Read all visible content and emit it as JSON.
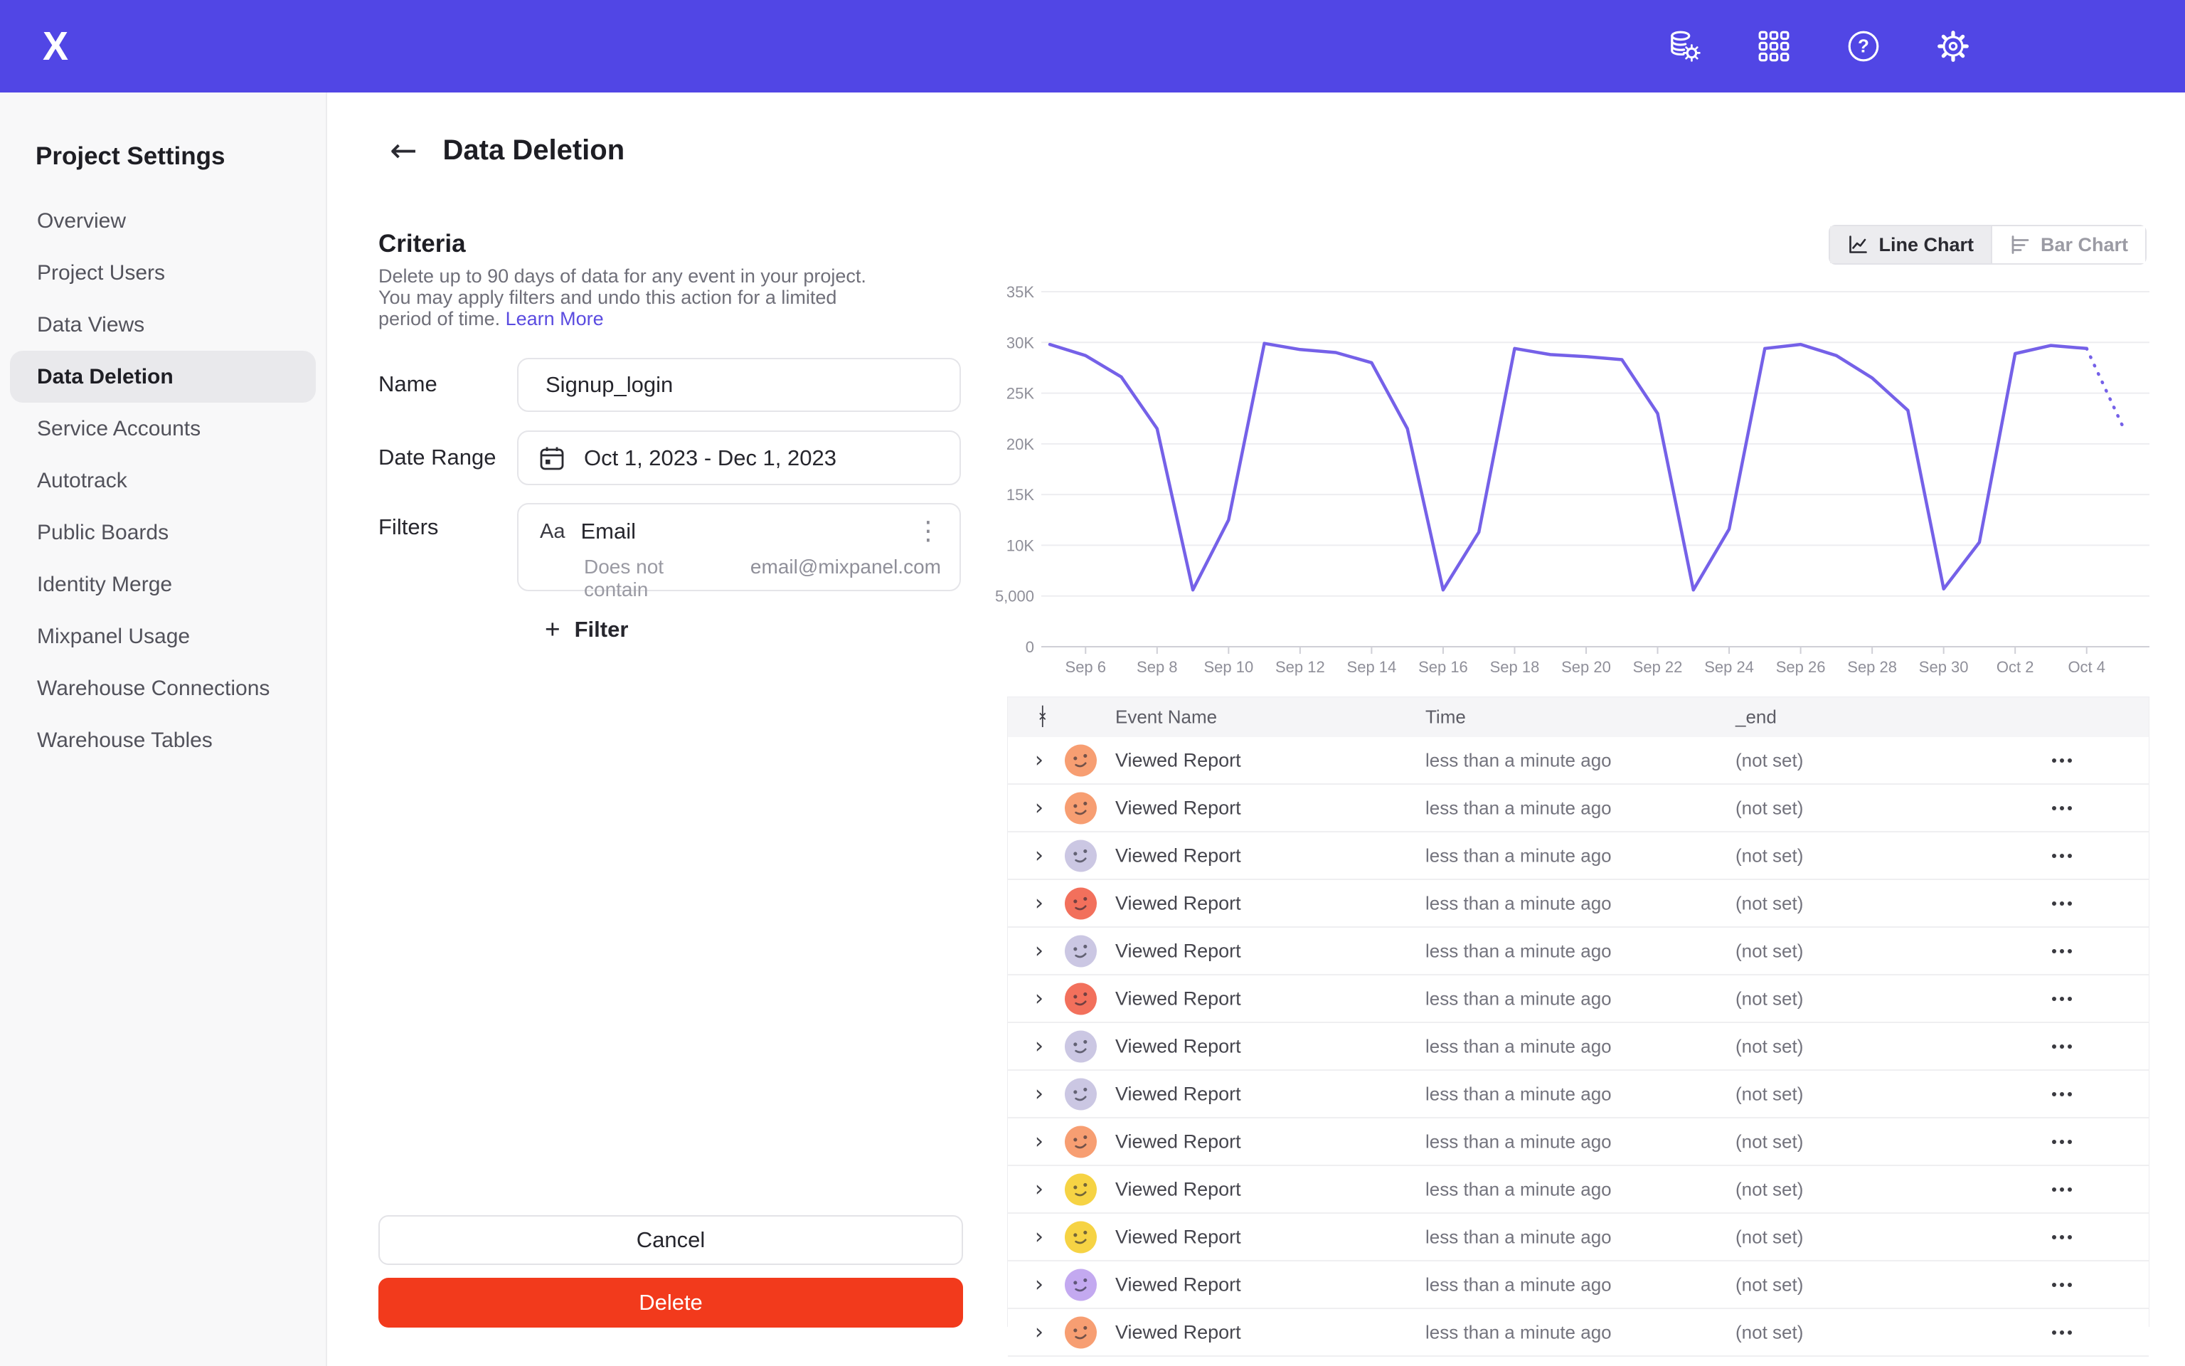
{
  "navbar": {
    "bg": "#5146E5",
    "logo": "X",
    "icons": [
      "data-management-icon",
      "apps-grid-icon",
      "help-icon",
      "settings-icon"
    ]
  },
  "sidebar": {
    "title": "Project Settings",
    "items": [
      {
        "label": "Overview",
        "active": false
      },
      {
        "label": "Project Users",
        "active": false
      },
      {
        "label": "Data Views",
        "active": false
      },
      {
        "label": "Data Deletion",
        "active": true
      },
      {
        "label": "Service Accounts",
        "active": false
      },
      {
        "label": "Autotrack",
        "active": false
      },
      {
        "label": "Public Boards",
        "active": false
      },
      {
        "label": "Identity Merge",
        "active": false
      },
      {
        "label": "Mixpanel Usage",
        "active": false
      },
      {
        "label": "Warehouse Connections",
        "active": false
      },
      {
        "label": "Warehouse Tables",
        "active": false
      }
    ]
  },
  "page": {
    "title": "Data Deletion"
  },
  "criteria": {
    "heading": "Criteria",
    "description": "Delete up to 90 days of data for any event in your project. You may apply filters and undo this action for a limited period of time.",
    "learn_more": "Learn More",
    "name_label": "Name",
    "name_value": "Signup_login",
    "date_label": "Date Range",
    "date_value": "Oct 1, 2023 - Dec 1, 2023",
    "filters_label": "Filters",
    "filter_card": {
      "type_icon": "Aa",
      "property": "Email",
      "operator": "Does not contain",
      "value": "email@mixpanel.com"
    },
    "add_filter_label": "Filter",
    "cancel_label": "Cancel",
    "delete_label": "Delete"
  },
  "chart_toggle": {
    "line_label": "Line Chart",
    "bar_label": "Bar Chart",
    "active": "line"
  },
  "chart_data": {
    "type": "line",
    "title": "",
    "xlabel": "",
    "ylabel": "",
    "x": [
      "Sep 5",
      "Sep 6",
      "Sep 7",
      "Sep 8",
      "Sep 9",
      "Sep 10",
      "Sep 11",
      "Sep 12",
      "Sep 13",
      "Sep 14",
      "Sep 15",
      "Sep 16",
      "Sep 17",
      "Sep 18",
      "Sep 19",
      "Sep 20",
      "Sep 21",
      "Sep 22",
      "Sep 23",
      "Sep 24",
      "Sep 25",
      "Sep 26",
      "Sep 27",
      "Sep 28",
      "Sep 29",
      "Sep 30",
      "Oct 1",
      "Oct 2",
      "Oct 3",
      "Oct 4",
      "Oct 5"
    ],
    "values": [
      29800,
      28700,
      26600,
      21500,
      5600,
      12500,
      29900,
      29300,
      29000,
      28000,
      21500,
      5600,
      11300,
      29400,
      28800,
      28600,
      28300,
      23000,
      5600,
      11600,
      29400,
      29800,
      28700,
      26500,
      23300,
      5700,
      10300,
      28900,
      29700,
      29400,
      21800
    ],
    "dotted_from_index": 29,
    "ylim": [
      0,
      35000
    ],
    "y_ticks": [
      0,
      5000,
      10000,
      15000,
      20000,
      25000,
      30000,
      35000
    ],
    "y_tick_labels": [
      "0",
      "5,000",
      "10K",
      "15K",
      "20K",
      "25K",
      "30K",
      "35K"
    ],
    "x_tick_labels": [
      "Sep 6",
      "Sep 8",
      "Sep 10",
      "Sep 12",
      "Sep 14",
      "Sep 16",
      "Sep 18",
      "Sep 20",
      "Sep 22",
      "Sep 24",
      "Sep 26",
      "Sep 28",
      "Sep 30",
      "Oct 2",
      "Oct 4"
    ],
    "line_color": "#7561E8",
    "grid": true,
    "legend": "none"
  },
  "table": {
    "columns": [
      "Event Name",
      "Time",
      "_end"
    ],
    "rows": [
      {
        "event": "Viewed Report",
        "time": "less than a minute ago",
        "end": "(not set)",
        "avatar": "#F79E72"
      },
      {
        "event": "Viewed Report",
        "time": "less than a minute ago",
        "end": "(not set)",
        "avatar": "#F79E72"
      },
      {
        "event": "Viewed Report",
        "time": "less than a minute ago",
        "end": "(not set)",
        "avatar": "#CBC7E3"
      },
      {
        "event": "Viewed Report",
        "time": "less than a minute ago",
        "end": "(not set)",
        "avatar": "#F2705C"
      },
      {
        "event": "Viewed Report",
        "time": "less than a minute ago",
        "end": "(not set)",
        "avatar": "#CBC7E3"
      },
      {
        "event": "Viewed Report",
        "time": "less than a minute ago",
        "end": "(not set)",
        "avatar": "#F2705C"
      },
      {
        "event": "Viewed Report",
        "time": "less than a minute ago",
        "end": "(not set)",
        "avatar": "#CBC7E3"
      },
      {
        "event": "Viewed Report",
        "time": "less than a minute ago",
        "end": "(not set)",
        "avatar": "#CBC7E3"
      },
      {
        "event": "Viewed Report",
        "time": "less than a minute ago",
        "end": "(not set)",
        "avatar": "#F79E72"
      },
      {
        "event": "Viewed Report",
        "time": "less than a minute ago",
        "end": "(not set)",
        "avatar": "#F6D344"
      },
      {
        "event": "Viewed Report",
        "time": "less than a minute ago",
        "end": "(not set)",
        "avatar": "#F6D344"
      },
      {
        "event": "Viewed Report",
        "time": "less than a minute ago",
        "end": "(not set)",
        "avatar": "#C3A9F0"
      },
      {
        "event": "Viewed Report",
        "time": "less than a minute ago",
        "end": "(not set)",
        "avatar": "#F79E72"
      }
    ]
  }
}
